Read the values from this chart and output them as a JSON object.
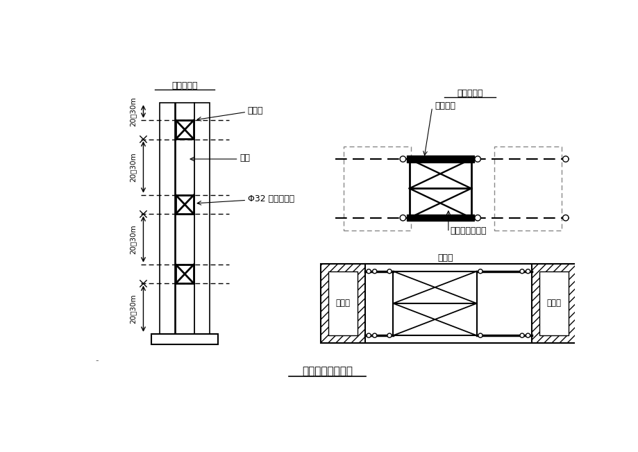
{
  "title": "墩身临时连接方案",
  "bg_color": "#ffffff",
  "line_color": "#000000",
  "labels": {
    "overview": "总体布置图",
    "detail": "详细立面图",
    "top_view": "俧视图",
    "steel_pad": "镰垫板",
    "pier_body": "墩身",
    "rebar": "Φ32 精轧螺纹锄",
    "embedded": "预埋镰板",
    "i_beam": "工字锄连接桁架",
    "hollow_pier_left": "空心墩",
    "hollow_pier_right": "空心墩",
    "dim1": "20～30m",
    "dim2": "20～30m",
    "dim3": "20～30m"
  },
  "font_size": 9,
  "font_family": "SimSun"
}
